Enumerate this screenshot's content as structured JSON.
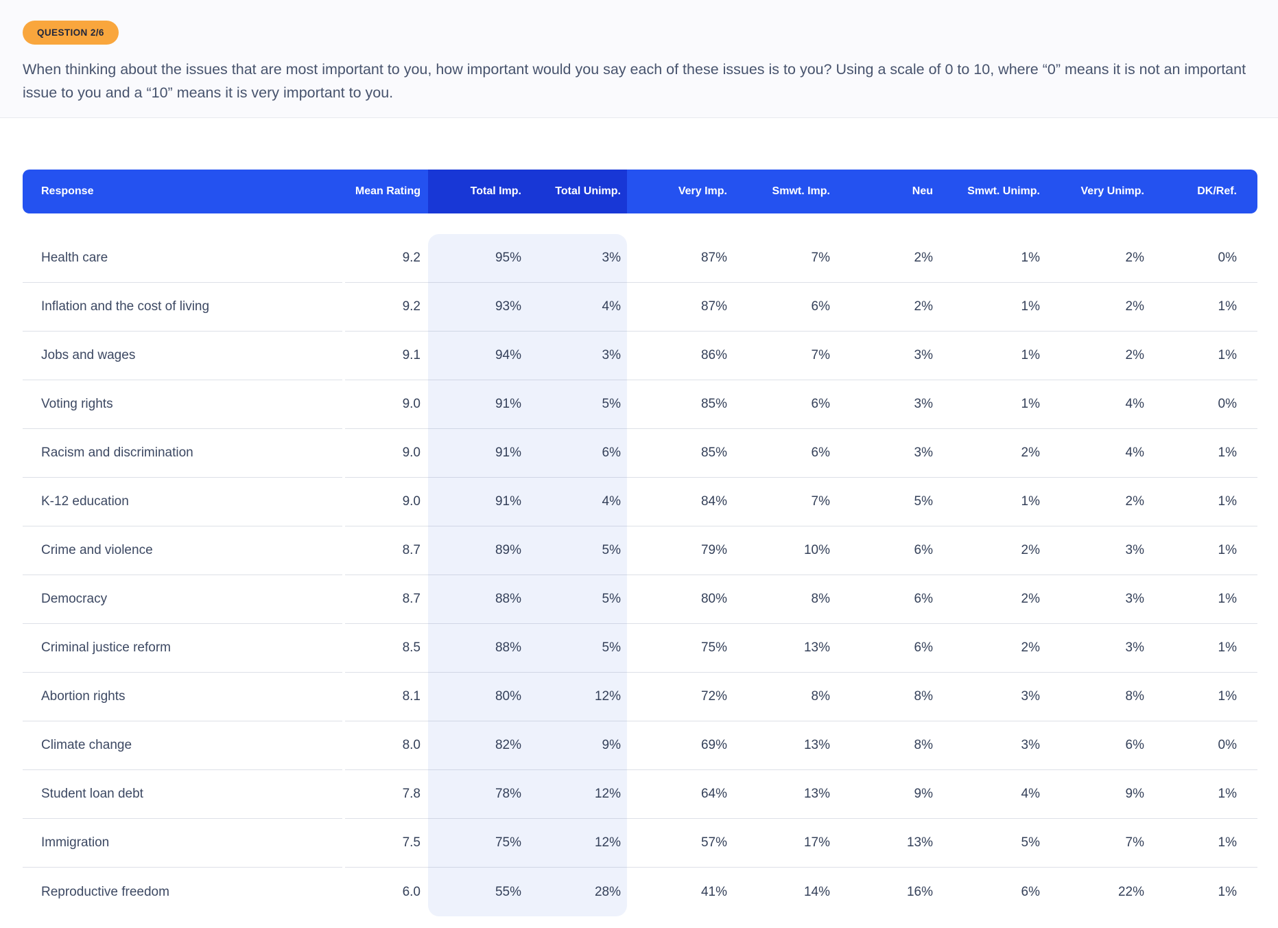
{
  "badge": "QUESTION 2/6",
  "question": "When thinking about the issues that are most important to you, how important would you say each of these issues is to you? Using a scale of 0 to 10, where “0” means it is not an important issue to you and a “10” means it is very important to you.",
  "colors": {
    "header_blue": "#2452f0",
    "header_dark_blue": "#1837d6",
    "highlight_band": "#eef2fc",
    "badge_orange": "#f9a63d",
    "text_dark": "#344059"
  },
  "table": {
    "columns": [
      "Response",
      "Mean Rating",
      "Total Imp.",
      "Total Unimp.",
      "Very Imp.",
      "Smwt. Imp.",
      "Neu",
      "Smwt. Unimp.",
      "Very Unimp.",
      "DK/Ref."
    ],
    "highlighted_columns": [
      "Total Imp.",
      "Total Unimp."
    ],
    "rows": [
      {
        "response": "Health care",
        "mean": "9.2",
        "pcts": [
          "95%",
          "3%",
          "87%",
          "7%",
          "2%",
          "1%",
          "2%",
          "0%"
        ]
      },
      {
        "response": "Inflation and the cost of living",
        "mean": "9.2",
        "pcts": [
          "93%",
          "4%",
          "87%",
          "6%",
          "2%",
          "1%",
          "2%",
          "1%"
        ]
      },
      {
        "response": "Jobs and wages",
        "mean": "9.1",
        "pcts": [
          "94%",
          "3%",
          "86%",
          "7%",
          "3%",
          "1%",
          "2%",
          "1%"
        ]
      },
      {
        "response": "Voting rights",
        "mean": "9.0",
        "pcts": [
          "91%",
          "5%",
          "85%",
          "6%",
          "3%",
          "1%",
          "4%",
          "0%"
        ]
      },
      {
        "response": "Racism and discrimination",
        "mean": "9.0",
        "pcts": [
          "91%",
          "6%",
          "85%",
          "6%",
          "3%",
          "2%",
          "4%",
          "1%"
        ]
      },
      {
        "response": "K-12 education",
        "mean": "9.0",
        "pcts": [
          "91%",
          "4%",
          "84%",
          "7%",
          "5%",
          "1%",
          "2%",
          "1%"
        ]
      },
      {
        "response": "Crime and violence",
        "mean": "8.7",
        "pcts": [
          "89%",
          "5%",
          "79%",
          "10%",
          "6%",
          "2%",
          "3%",
          "1%"
        ]
      },
      {
        "response": "Democracy",
        "mean": "8.7",
        "pcts": [
          "88%",
          "5%",
          "80%",
          "8%",
          "6%",
          "2%",
          "3%",
          "1%"
        ]
      },
      {
        "response": "Criminal justice reform",
        "mean": "8.5",
        "pcts": [
          "88%",
          "5%",
          "75%",
          "13%",
          "6%",
          "2%",
          "3%",
          "1%"
        ]
      },
      {
        "response": "Abortion rights",
        "mean": "8.1",
        "pcts": [
          "80%",
          "12%",
          "72%",
          "8%",
          "8%",
          "3%",
          "8%",
          "1%"
        ]
      },
      {
        "response": "Climate change",
        "mean": "8.0",
        "pcts": [
          "82%",
          "9%",
          "69%",
          "13%",
          "8%",
          "3%",
          "6%",
          "0%"
        ]
      },
      {
        "response": "Student loan debt",
        "mean": "7.8",
        "pcts": [
          "78%",
          "12%",
          "64%",
          "13%",
          "9%",
          "4%",
          "9%",
          "1%"
        ]
      },
      {
        "response": "Immigration",
        "mean": "7.5",
        "pcts": [
          "75%",
          "12%",
          "57%",
          "17%",
          "13%",
          "5%",
          "7%",
          "1%"
        ]
      },
      {
        "response": "Reproductive freedom",
        "mean": "6.0",
        "pcts": [
          "55%",
          "28%",
          "41%",
          "14%",
          "16%",
          "6%",
          "22%",
          "1%"
        ]
      }
    ]
  }
}
